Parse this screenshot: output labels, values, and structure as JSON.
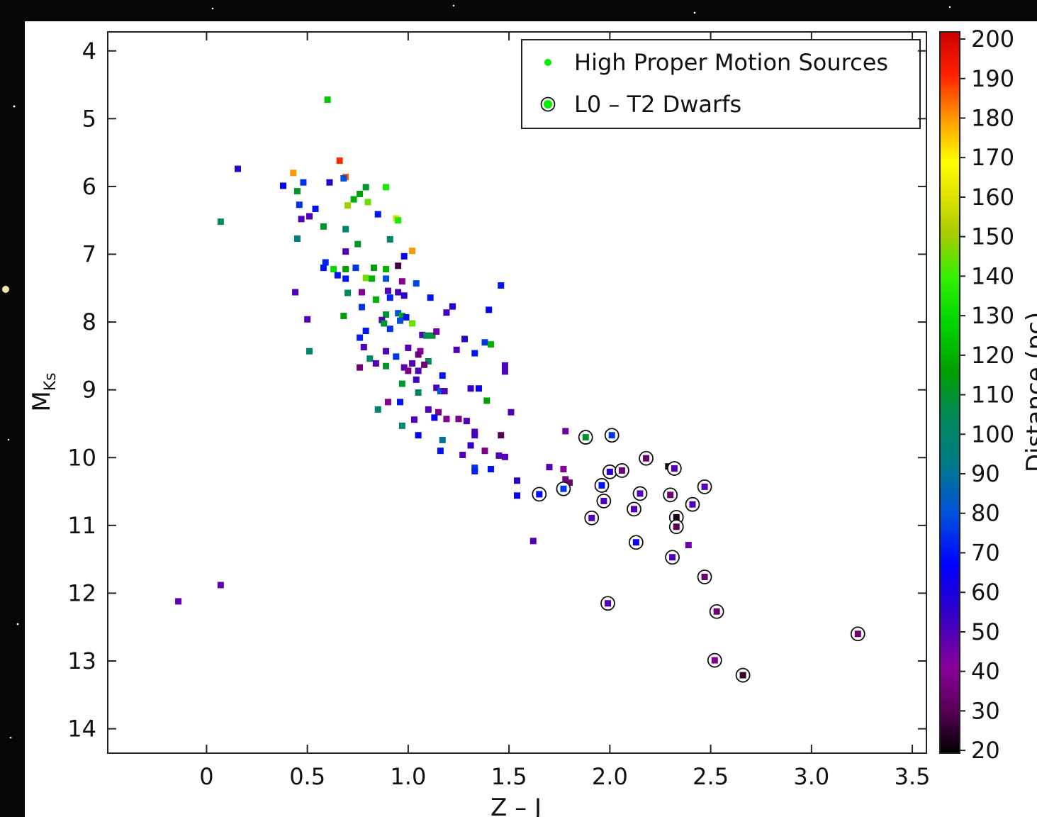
{
  "chart_data": {
    "type": "scatter",
    "xlabel": "Z – J",
    "ylabel": {
      "main": "M",
      "sub": "Ks"
    },
    "colorbar_label": "Distance (pc)",
    "colormap": "nipy_spectral",
    "clim": [
      19.3,
      201.8
    ],
    "cticks": [
      20,
      30,
      40,
      50,
      60,
      70,
      80,
      90,
      100,
      110,
      120,
      130,
      140,
      150,
      160,
      170,
      180,
      190,
      200
    ],
    "xlim": [
      -0.49,
      3.57
    ],
    "xticks": [
      0,
      0.5,
      {
        "value": 1,
        "label": "1.0"
      },
      1.5,
      {
        "value": 2,
        "label": "2.0"
      },
      2.5,
      {
        "value": 3,
        "label": "3.0"
      },
      3.5
    ],
    "ylim": [
      3.72,
      14.36
    ],
    "y_inverted": true,
    "yticks": [
      4,
      5,
      6,
      7,
      8,
      9,
      10,
      11,
      12,
      13,
      14
    ],
    "legend": "upper right",
    "series": [
      {
        "name": "High Proper Motion Sources",
        "marker": "square",
        "color": "#00ee00",
        "x": [
          0.155,
          0.43,
          0.66,
          0.69,
          0.6,
          0.07,
          0.38,
          0.45,
          0.48,
          0.61,
          0.68,
          0.79,
          0.76,
          0.73,
          0.7,
          0.8,
          0.89,
          0.46,
          0.54,
          0.47,
          0.51,
          0.85,
          0.94,
          0.95,
          0.58,
          0.69,
          0.45,
          0.91,
          0.75,
          0.69,
          1.02,
          0.98,
          0.95,
          0.59,
          0.58,
          0.63,
          0.69,
          0.74,
          0.83,
          0.89,
          0.65,
          0.69,
          0.79,
          0.82,
          0.89,
          0.97,
          1.04,
          1.46,
          0.44,
          0.7,
          0.77,
          0.9,
          0.95,
          0.84,
          0.91,
          0.98,
          1.11,
          0.77,
          1.22,
          1.19,
          1.4,
          0.68,
          0.89,
          0.95,
          0.97,
          0.87,
          0.88,
          0.96,
          0.99,
          0.5,
          0.91,
          1.02,
          0.79,
          0.76,
          1.07,
          1.09,
          1.12,
          1.14,
          1.28,
          1.38,
          1.41,
          0.51,
          0.78,
          0.89,
          1.0,
          1.06,
          1.05,
          1.24,
          1.33,
          0.81,
          0.94,
          0.84,
          1.1,
          1.08,
          0.76,
          0.89,
          0.98,
          1.02,
          1.0,
          1.05,
          1.48,
          1.48,
          1.17,
          1.04,
          0.97,
          1.14,
          1.31,
          1.35,
          1.05,
          1.16,
          1.18,
          1.39,
          0.9,
          0.96,
          0.85,
          1.1,
          1.15,
          1.51,
          1.03,
          1.13,
          1.19,
          1.25,
          1.29,
          0.97,
          1.33,
          1.33,
          1.46,
          1.78,
          1.05,
          1.17,
          1.31,
          1.16,
          1.38,
          1.27,
          1.45,
          1.48,
          1.33,
          1.33,
          1.41,
          1.7,
          1.77,
          1.78,
          1.8,
          1.54,
          1.54,
          1.62,
          0.07,
          -0.14,
          1.97,
          2.29,
          2.39
        ],
        "values": [
          5.74,
          5.8,
          5.62,
          5.86,
          4.72,
          6.52,
          5.99,
          6.07,
          5.94,
          5.94,
          5.88,
          6.01,
          6.11,
          6.19,
          6.28,
          6.23,
          6.01,
          6.27,
          6.33,
          6.48,
          6.44,
          6.41,
          6.47,
          6.5,
          6.59,
          6.63,
          6.77,
          6.78,
          6.85,
          6.96,
          6.95,
          7.03,
          7.17,
          7.12,
          7.2,
          7.22,
          7.22,
          7.2,
          7.2,
          7.22,
          7.31,
          7.36,
          7.35,
          7.36,
          7.36,
          7.4,
          7.43,
          7.46,
          7.56,
          7.57,
          7.56,
          7.54,
          7.56,
          7.67,
          7.64,
          7.61,
          7.64,
          7.78,
          7.77,
          7.86,
          7.82,
          7.91,
          7.89,
          7.87,
          7.91,
          7.97,
          8.02,
          7.98,
          7.93,
          7.96,
          8.1,
          8.02,
          8.13,
          8.23,
          8.19,
          8.2,
          8.2,
          8.14,
          8.25,
          8.3,
          8.33,
          8.43,
          8.37,
          8.43,
          8.38,
          8.43,
          8.48,
          8.41,
          8.46,
          8.54,
          8.51,
          8.61,
          8.58,
          8.63,
          8.67,
          8.65,
          8.67,
          8.61,
          8.72,
          8.72,
          8.64,
          8.73,
          8.79,
          8.85,
          8.91,
          8.97,
          8.98,
          8.98,
          9.04,
          9.02,
          9.02,
          9.16,
          9.18,
          9.18,
          9.29,
          9.29,
          9.33,
          9.33,
          9.44,
          9.41,
          9.43,
          9.43,
          9.46,
          9.53,
          9.62,
          9.67,
          9.67,
          9.61,
          9.67,
          9.74,
          9.82,
          9.9,
          9.9,
          9.96,
          9.97,
          9.99,
          10.15,
          10.2,
          10.17,
          10.14,
          10.17,
          10.32,
          10.37,
          10.34,
          10.56,
          11.23,
          11.88,
          12.12,
          10.46,
          10.13,
          11.29
        ],
        "color_values": [
          55,
          180,
          190,
          185,
          125,
          105,
          65,
          110,
          75,
          55,
          80,
          110,
          115,
          120,
          150,
          145,
          135,
          75,
          70,
          50,
          50,
          70,
          160,
          135,
          110,
          100,
          95,
          100,
          110,
          50,
          180,
          65,
          28,
          72,
          70,
          130,
          115,
          75,
          115,
          120,
          70,
          70,
          145,
          120,
          80,
          40,
          78,
          70,
          50,
          105,
          40,
          50,
          52,
          120,
          72,
          55,
          70,
          75,
          58,
          52,
          65,
          115,
          110,
          80,
          120,
          50,
          110,
          80,
          70,
          50,
          75,
          145,
          70,
          72,
          50,
          105,
          110,
          45,
          55,
          75,
          120,
          100,
          50,
          50,
          50,
          40,
          35,
          50,
          70,
          100,
          75,
          50,
          105,
          35,
          35,
          110,
          48,
          50,
          38,
          50,
          50,
          50,
          70,
          52,
          110,
          50,
          55,
          65,
          100,
          80,
          50,
          115,
          40,
          70,
          100,
          50,
          38,
          50,
          50,
          65,
          40,
          38,
          50,
          100,
          50,
          52,
          30,
          45,
          65,
          90,
          55,
          70,
          38,
          50,
          50,
          50,
          75,
          72,
          70,
          50,
          40,
          38,
          35,
          55,
          65,
          50,
          48,
          48,
          50,
          22,
          45
        ]
      },
      {
        "name": "L0 – T2 Dwarfs",
        "marker": "circled",
        "color": "#00ee00",
        "x": [
          1.88,
          2.01,
          2.18,
          2.0,
          2.06,
          2.32,
          1.65,
          1.77,
          1.96,
          2.15,
          2.3,
          2.47,
          1.97,
          2.12,
          2.41,
          1.91,
          2.33,
          2.33,
          2.13,
          2.31,
          2.47,
          1.99,
          2.53,
          3.23,
          2.52,
          2.66
        ],
        "values": [
          9.7,
          9.67,
          10.01,
          10.21,
          10.19,
          10.16,
          10.54,
          10.46,
          10.41,
          10.53,
          10.55,
          10.43,
          10.64,
          10.76,
          10.69,
          10.89,
          10.88,
          11.02,
          11.25,
          11.47,
          11.76,
          12.15,
          12.27,
          12.6,
          12.99,
          13.21
        ],
        "color_values": [
          110,
          75,
          35,
          55,
          35,
          50,
          68,
          75,
          70,
          50,
          35,
          50,
          50,
          50,
          50,
          50,
          22,
          30,
          65,
          50,
          35,
          50,
          35,
          35,
          38,
          25
        ]
      }
    ]
  }
}
